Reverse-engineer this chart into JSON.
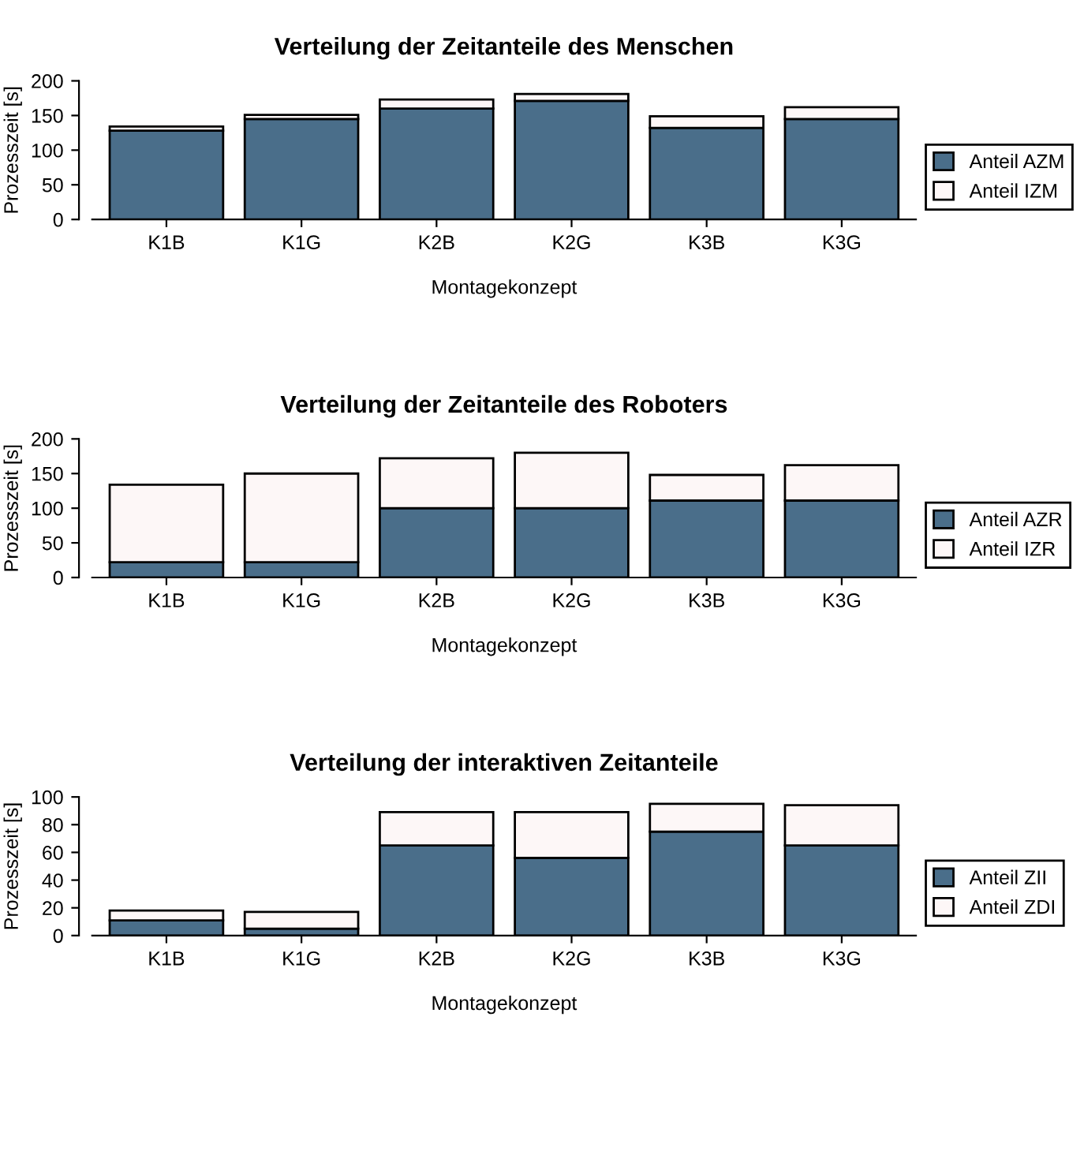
{
  "chart_data": [
    {
      "type": "bar",
      "stacked": true,
      "title": "Verteilung der Zeitanteile des Menschen",
      "xlabel": "Montagekonzept",
      "ylabel": "Prozesszeit [s]",
      "categories": [
        "K1B",
        "K1G",
        "K2B",
        "K2G",
        "K3B",
        "K3G"
      ],
      "ylim": [
        0,
        200
      ],
      "yticks": [
        0,
        50,
        100,
        150,
        200
      ],
      "grid": false,
      "legend": "bottom right",
      "series": [
        {
          "name": "Anteil AZM",
          "color": "#4a6e8a",
          "values": [
            128,
            145,
            160,
            171,
            132,
            145
          ]
        },
        {
          "name": "Anteil IZM",
          "color": "#fdf7f7",
          "values": [
            6,
            6,
            13,
            10,
            17,
            17
          ]
        }
      ]
    },
    {
      "type": "bar",
      "stacked": true,
      "title": "Verteilung der Zeitanteile des Roboters",
      "xlabel": "Montagekonzept",
      "ylabel": "Prozesszeit [s]",
      "categories": [
        "K1B",
        "K1G",
        "K2B",
        "K2G",
        "K3B",
        "K3G"
      ],
      "ylim": [
        0,
        200
      ],
      "yticks": [
        0,
        50,
        100,
        150,
        200
      ],
      "grid": false,
      "legend": "bottom right",
      "series": [
        {
          "name": "Anteil AZR",
          "color": "#4a6e8a",
          "values": [
            22,
            22,
            100,
            100,
            111,
            111
          ]
        },
        {
          "name": "Anteil IZR",
          "color": "#fdf7f7",
          "values": [
            112,
            128,
            72,
            80,
            37,
            51
          ]
        }
      ]
    },
    {
      "type": "bar",
      "stacked": true,
      "title": "Verteilung der interaktiven Zeitanteile",
      "xlabel": "Montagekonzept",
      "ylabel": "Prozesszeit [s]",
      "categories": [
        "K1B",
        "K1G",
        "K2B",
        "K2G",
        "K3B",
        "K3G"
      ],
      "ylim": [
        0,
        100
      ],
      "yticks": [
        0,
        20,
        40,
        60,
        80,
        100
      ],
      "grid": false,
      "legend": "bottom right",
      "series": [
        {
          "name": "Anteil ZII",
          "color": "#4a6e8a",
          "values": [
            11,
            5,
            65,
            56,
            75,
            65
          ]
        },
        {
          "name": "Anteil ZDI",
          "color": "#fdf7f7",
          "values": [
            7,
            12,
            24,
            33,
            20,
            29
          ]
        }
      ]
    }
  ]
}
